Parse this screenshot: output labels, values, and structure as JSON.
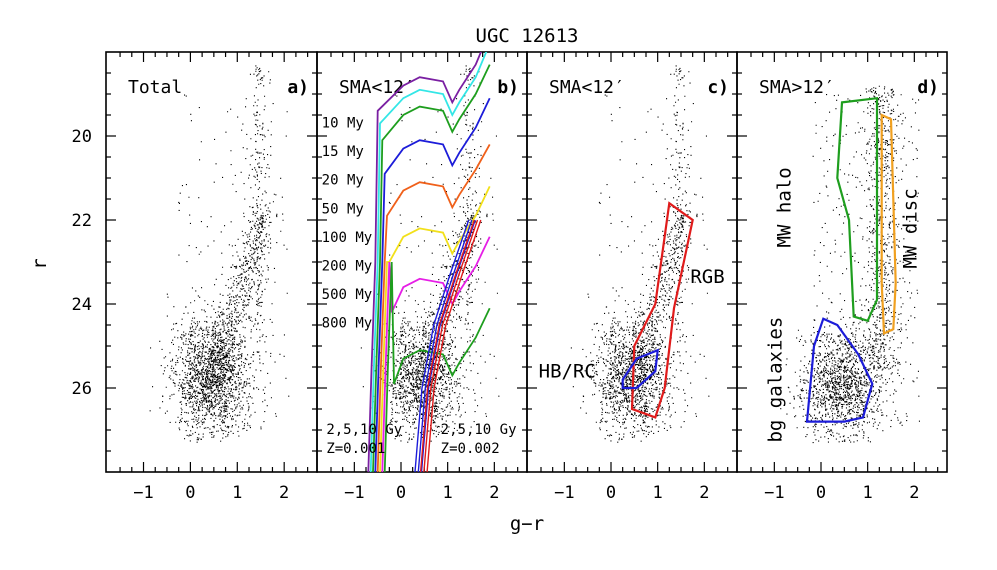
{
  "chart_data": {
    "type": "scatter",
    "title": "UGC 12613",
    "xlabel": "g−r",
    "ylabel": "r",
    "xlim": [
      -1.8,
      2.7
    ],
    "ylim": [
      28.0,
      18.0
    ],
    "xticks": [
      {
        "value": -1,
        "label": "−1"
      },
      {
        "value": 0,
        "label": "0"
      },
      {
        "value": 1,
        "label": "1"
      },
      {
        "value": 2,
        "label": "2"
      }
    ],
    "yticks": [
      {
        "value": 20,
        "label": "20"
      },
      {
        "value": 22,
        "label": "22"
      },
      {
        "value": 24,
        "label": "24"
      },
      {
        "value": 26,
        "label": "26"
      }
    ],
    "panels": [
      {
        "id": "a",
        "name": "Total",
        "tag": "a)",
        "points": "all stars",
        "annotations": []
      },
      {
        "id": "b",
        "name": "SMA<12′",
        "tag": "b)",
        "points": "inner stars",
        "isochrone_ages": [
          {
            "label": "10 My",
            "color": "#7a1fa2"
          },
          {
            "label": "15 My",
            "color": "#33e6e6"
          },
          {
            "label": "20 My",
            "color": "#1e9e1e"
          },
          {
            "label": "50 My",
            "color": "#1c1cd9"
          },
          {
            "label": "100 My",
            "color": "#f0601a"
          },
          {
            "label": "200 My",
            "color": "#f2e01a"
          },
          {
            "label": "500 My",
            "color": "#e61ee6"
          },
          {
            "label": "800 My",
            "color": "#1e9e1e"
          }
        ],
        "old_isochrones": [
          {
            "line1": "2,5,10 Gy",
            "line2": "Z=0.001",
            "color": "#1c1cd9"
          },
          {
            "line1": "2,5,10 Gy",
            "line2": "Z=0.002",
            "color": "#e01b1b"
          }
        ]
      },
      {
        "id": "c",
        "name": "SMA<12′",
        "tag": "c)",
        "points": "inner stars",
        "regions": [
          {
            "label": "RGB",
            "color": "#e01b1b"
          },
          {
            "label": "HB/RC",
            "color": "#1c1cd9"
          }
        ]
      },
      {
        "id": "d",
        "name": "SMA>12′",
        "tag": "d)",
        "points": "outer stars",
        "regions": [
          {
            "label": "MW halo",
            "color": "#1e9e1e"
          },
          {
            "label": "MW disc",
            "color": "#f0a020"
          },
          {
            "label": "bg galaxies",
            "color": "#1c1cd9"
          }
        ]
      }
    ]
  }
}
